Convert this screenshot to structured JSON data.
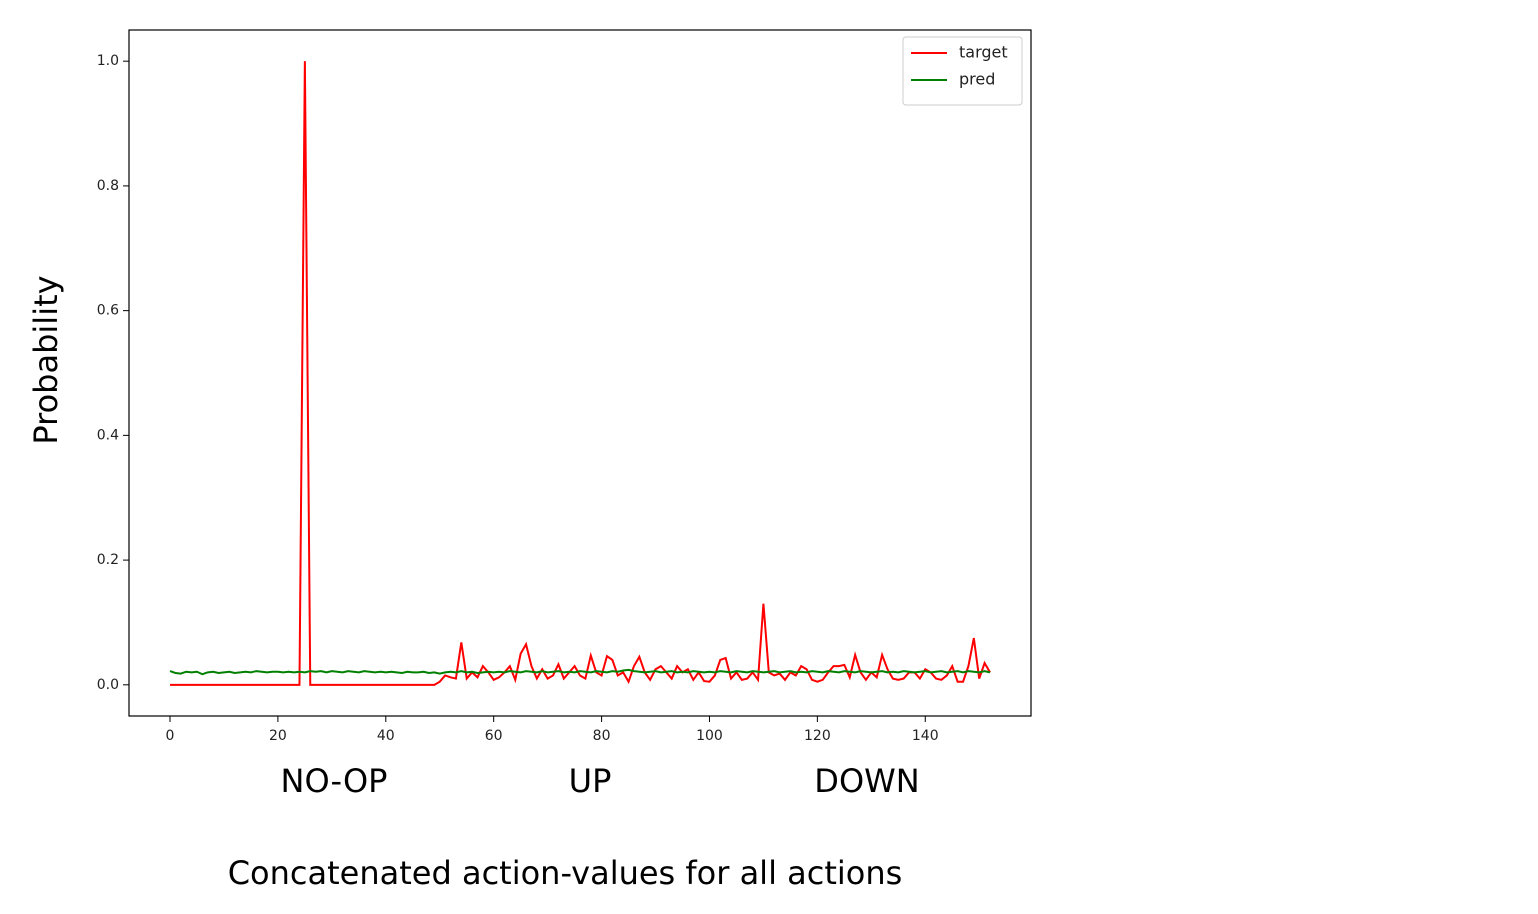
{
  "chart_data": {
    "type": "line",
    "xlabel": "Concatenated action-values for all actions",
    "ylabel": "Probability",
    "annotations": [
      "NO-OP",
      "UP",
      "DOWN"
    ],
    "legend": "upper right",
    "xlim": [
      -7.6,
      159.6
    ],
    "ylim": [
      -0.05,
      1.05
    ],
    "xticks": [
      0,
      20,
      40,
      60,
      80,
      100,
      120,
      140
    ],
    "yticks": [
      {
        "value": 0,
        "label": "0.0"
      },
      0.2,
      0.4,
      0.6,
      0.8,
      {
        "value": 1,
        "label": "1.0"
      }
    ],
    "x": [
      0,
      1,
      2,
      3,
      4,
      5,
      6,
      7,
      8,
      9,
      10,
      11,
      12,
      13,
      14,
      15,
      16,
      17,
      18,
      19,
      20,
      21,
      22,
      23,
      24,
      25,
      26,
      27,
      28,
      29,
      30,
      31,
      32,
      33,
      34,
      35,
      36,
      37,
      38,
      39,
      40,
      41,
      42,
      43,
      44,
      45,
      46,
      47,
      48,
      49,
      50,
      51,
      52,
      53,
      54,
      55,
      56,
      57,
      58,
      59,
      60,
      61,
      62,
      63,
      64,
      65,
      66,
      67,
      68,
      69,
      70,
      71,
      72,
      73,
      74,
      75,
      76,
      77,
      78,
      79,
      80,
      81,
      82,
      83,
      84,
      85,
      86,
      87,
      88,
      89,
      90,
      91,
      92,
      93,
      94,
      95,
      96,
      97,
      98,
      99,
      100,
      101,
      102,
      103,
      104,
      105,
      106,
      107,
      108,
      109,
      110,
      111,
      112,
      113,
      114,
      115,
      116,
      117,
      118,
      119,
      120,
      121,
      122,
      123,
      124,
      125,
      126,
      127,
      128,
      129,
      130,
      131,
      132,
      133,
      134,
      135,
      136,
      137,
      138,
      139,
      140,
      141,
      142,
      143,
      144,
      145,
      146,
      147,
      148,
      149,
      150,
      151,
      152
    ],
    "series": [
      {
        "name": "target",
        "color": "#ff0000",
        "values": [
          0,
          0,
          0,
          0,
          0,
          0,
          0,
          0,
          0,
          0,
          0,
          0,
          0,
          0,
          0,
          0,
          0,
          0,
          0,
          0,
          0,
          0,
          0,
          0,
          0,
          1,
          0,
          0,
          0,
          0,
          0,
          0,
          0,
          0,
          0,
          0,
          0,
          0,
          0,
          0,
          0,
          0,
          0,
          0,
          0,
          0,
          0,
          0,
          0,
          0,
          0.005,
          0.015,
          0.012,
          0.01,
          0.068,
          0.01,
          0.02,
          0.012,
          0.03,
          0.02,
          0.008,
          0.012,
          0.02,
          0.03,
          0.008,
          0.05,
          0.065,
          0.03,
          0.01,
          0.025,
          0.01,
          0.015,
          0.033,
          0.01,
          0.02,
          0.03,
          0.015,
          0.01,
          0.047,
          0.02,
          0.015,
          0.046,
          0.04,
          0.015,
          0.02,
          0.005,
          0.03,
          0.045,
          0.02,
          0.008,
          0.025,
          0.03,
          0.02,
          0.01,
          0.03,
          0.02,
          0.025,
          0.008,
          0.02,
          0.006,
          0.005,
          0.015,
          0.04,
          0.043,
          0.01,
          0.02,
          0.008,
          0.01,
          0.02,
          0.008,
          0.13,
          0.02,
          0.015,
          0.018,
          0.008,
          0.02,
          0.015,
          0.03,
          0.025,
          0.008,
          0.005,
          0.008,
          0.02,
          0.03,
          0.03,
          0.032,
          0.012,
          0.048,
          0.02,
          0.008,
          0.02,
          0.012,
          0.048,
          0.025,
          0.01,
          0.008,
          0.01,
          0.02,
          0.02,
          0.01,
          0.025,
          0.02,
          0.01,
          0.008,
          0.015,
          0.03,
          0.005,
          0.005,
          0.03,
          0.075,
          0.01,
          0.035,
          0.02
        ]
      },
      {
        "name": "pred",
        "color": "#008000",
        "values": [
          0.022,
          0.019,
          0.018,
          0.021,
          0.02,
          0.021,
          0.017,
          0.02,
          0.021,
          0.019,
          0.02,
          0.021,
          0.019,
          0.02,
          0.021,
          0.02,
          0.022,
          0.021,
          0.02,
          0.021,
          0.021,
          0.02,
          0.021,
          0.02,
          0.021,
          0.02,
          0.022,
          0.021,
          0.022,
          0.02,
          0.022,
          0.021,
          0.02,
          0.022,
          0.021,
          0.02,
          0.022,
          0.021,
          0.02,
          0.021,
          0.02,
          0.021,
          0.02,
          0.019,
          0.021,
          0.02,
          0.02,
          0.021,
          0.019,
          0.02,
          0.018,
          0.02,
          0.021,
          0.02,
          0.022,
          0.02,
          0.021,
          0.019,
          0.02,
          0.021,
          0.02,
          0.021,
          0.02,
          0.022,
          0.021,
          0.02,
          0.022,
          0.021,
          0.02,
          0.022,
          0.02,
          0.021,
          0.022,
          0.02,
          0.021,
          0.02,
          0.022,
          0.021,
          0.02,
          0.022,
          0.021,
          0.02,
          0.022,
          0.021,
          0.023,
          0.024,
          0.022,
          0.021,
          0.02,
          0.021,
          0.022,
          0.02,
          0.021,
          0.022,
          0.02,
          0.021,
          0.02,
          0.022,
          0.021,
          0.02,
          0.021,
          0.02,
          0.022,
          0.021,
          0.02,
          0.022,
          0.021,
          0.02,
          0.022,
          0.021,
          0.02,
          0.021,
          0.022,
          0.02,
          0.021,
          0.022,
          0.02,
          0.021,
          0.02,
          0.022,
          0.021,
          0.02,
          0.022,
          0.021,
          0.02,
          0.022,
          0.021,
          0.02,
          0.022,
          0.021,
          0.02,
          0.021,
          0.022,
          0.02,
          0.021,
          0.02,
          0.022,
          0.021,
          0.02,
          0.021,
          0.022,
          0.02,
          0.021,
          0.022,
          0.02,
          0.021,
          0.022,
          0.02,
          0.022,
          0.021,
          0.02,
          0.022,
          0.02
        ]
      }
    ]
  }
}
